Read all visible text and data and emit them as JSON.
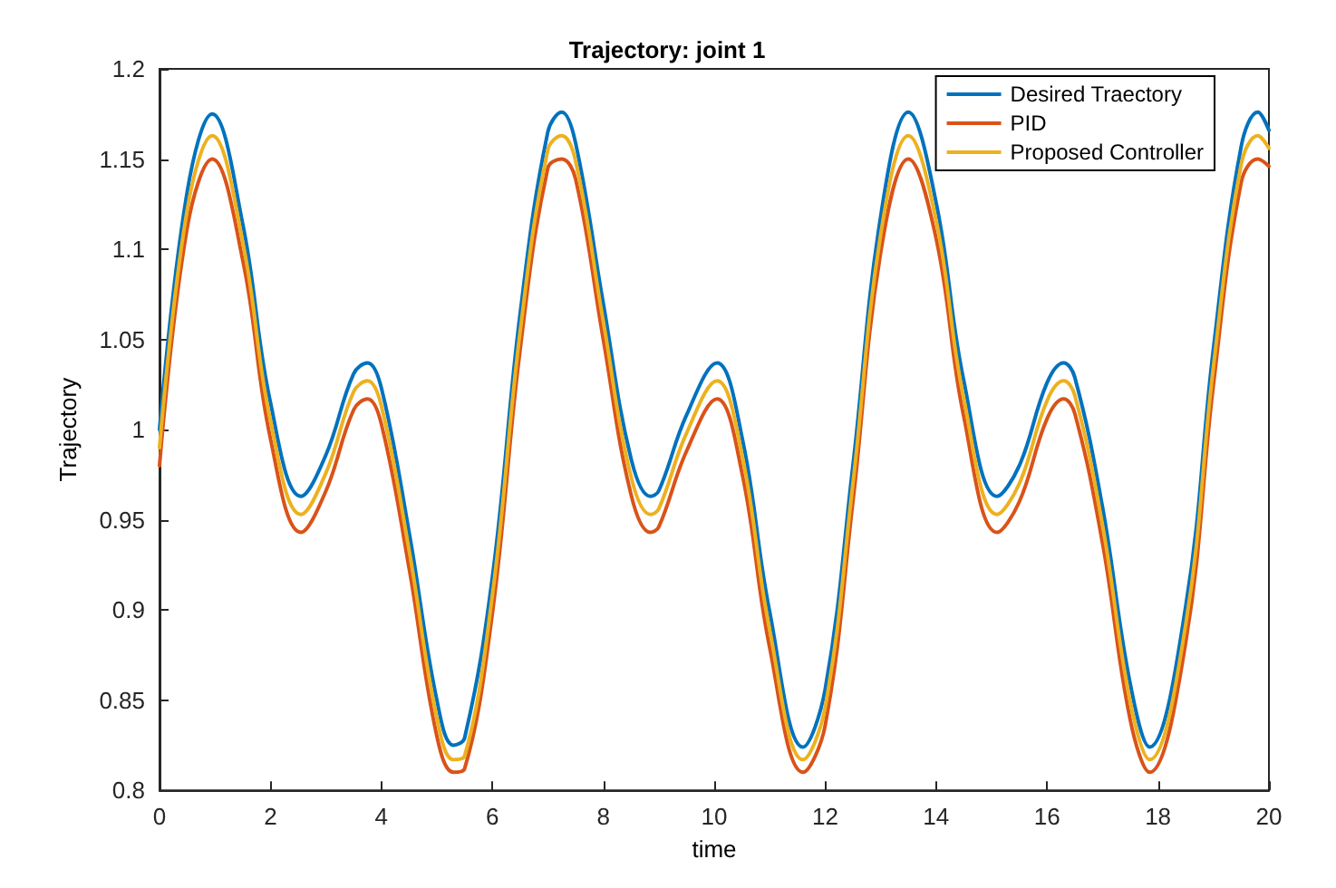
{
  "chart_data": {
    "type": "line",
    "title": "Trajectory: joint 1",
    "xlabel": "time",
    "ylabel": "Trajectory",
    "x": [
      0,
      0.5,
      0.95,
      1.5,
      2,
      2.55,
      3,
      3.5,
      3.75,
      4,
      4.5,
      5,
      5.3,
      5.5,
      6,
      6.5,
      7,
      7.25,
      7.5,
      8,
      8.5,
      8.85,
      9,
      9.5,
      10.05,
      10.5,
      11,
      11.6,
      12,
      12.5,
      13,
      13.5,
      14,
      14.5,
      15.1,
      15.5,
      16,
      16.3,
      16.5,
      17,
      17.5,
      17.85,
      18.5,
      19,
      19.5,
      19.8,
      20
    ],
    "series": [
      {
        "name": "Desired Traectory",
        "color": "#0072bd",
        "values": [
          1.0,
          1.132,
          1.175,
          1.114,
          1.015,
          0.963,
          0.986,
          1.031,
          1.037,
          1.023,
          0.943,
          0.85,
          0.825,
          0.829,
          0.918,
          1.064,
          1.165,
          1.176,
          1.159,
          1.07,
          0.984,
          0.963,
          0.966,
          1.008,
          1.037,
          0.996,
          0.899,
          0.824,
          0.856,
          0.98,
          1.118,
          1.176,
          1.126,
          1.027,
          0.963,
          0.98,
          1.026,
          1.037,
          1.029,
          0.957,
          0.859,
          0.824,
          0.902,
          1.045,
          1.157,
          1.176,
          1.166
        ]
      },
      {
        "name": "PID",
        "color": "#d95319",
        "values": [
          0.98,
          1.112,
          1.15,
          1.094,
          0.995,
          0.943,
          0.966,
          1.011,
          1.017,
          1.003,
          0.923,
          0.83,
          0.81,
          0.812,
          0.898,
          1.044,
          1.145,
          1.15,
          1.139,
          1.05,
          0.964,
          0.943,
          0.946,
          0.988,
          1.017,
          0.976,
          0.879,
          0.81,
          0.836,
          0.96,
          1.098,
          1.15,
          1.106,
          1.007,
          0.943,
          0.96,
          1.006,
          1.017,
          1.009,
          0.937,
          0.839,
          0.81,
          0.882,
          1.025,
          1.137,
          1.15,
          1.146
        ]
      },
      {
        "name": "Proposed Controller",
        "color": "#edb120",
        "values": [
          0.99,
          1.122,
          1.163,
          1.104,
          1.005,
          0.953,
          0.976,
          1.021,
          1.027,
          1.013,
          0.933,
          0.84,
          0.817,
          0.819,
          0.908,
          1.054,
          1.155,
          1.163,
          1.149,
          1.06,
          0.974,
          0.953,
          0.956,
          0.998,
          1.027,
          0.986,
          0.889,
          0.817,
          0.846,
          0.97,
          1.108,
          1.163,
          1.116,
          1.017,
          0.953,
          0.97,
          1.016,
          1.027,
          1.019,
          0.947,
          0.849,
          0.817,
          0.892,
          1.035,
          1.147,
          1.163,
          1.156
        ]
      }
    ],
    "xlim": [
      0,
      20
    ],
    "xticks": [
      0,
      2,
      4,
      6,
      8,
      10,
      12,
      14,
      16,
      18,
      20
    ],
    "ylim": [
      0.8,
      1.2
    ],
    "yticks": [
      0.8,
      0.85,
      0.9,
      0.95,
      1,
      1.05,
      1.1,
      1.15,
      1.2
    ],
    "grid": false,
    "legend": "top right",
    "marker": "none",
    "line_style": "solid"
  }
}
